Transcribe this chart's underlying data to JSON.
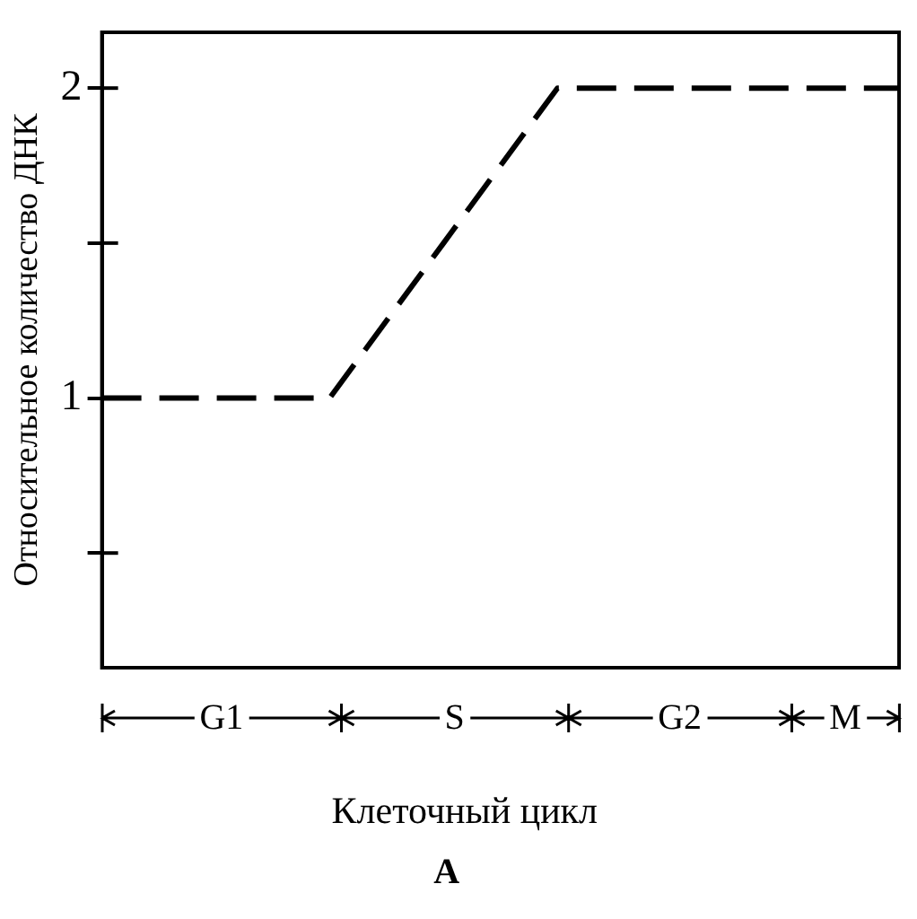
{
  "chart_data": {
    "type": "line",
    "title": "А",
    "xlabel": "Клеточный цикл",
    "ylabel": "Относительное количество ДНК",
    "categories": [
      null,
      null,
      null,
      null,
      null,
      null,
      null,
      null
    ],
    "series": [
      {
        "color": "#000000",
        "values": [
          1,
          1,
          1,
          1.5,
          2,
          2,
          2,
          2
        ]
      }
    ],
    "ylim": [
      0.13,
      2.18
    ],
    "yticks": [
      {
        "value": 0.5,
        "label": null
      },
      1,
      {
        "value": 1.5,
        "label": null
      },
      2
    ],
    "annotations": [
      "G1",
      "S",
      "G2",
      "M"
    ],
    "tick_labels": "y",
    "grid": false,
    "legend": false,
    "marker": "none",
    "line_style": "dashed"
  }
}
